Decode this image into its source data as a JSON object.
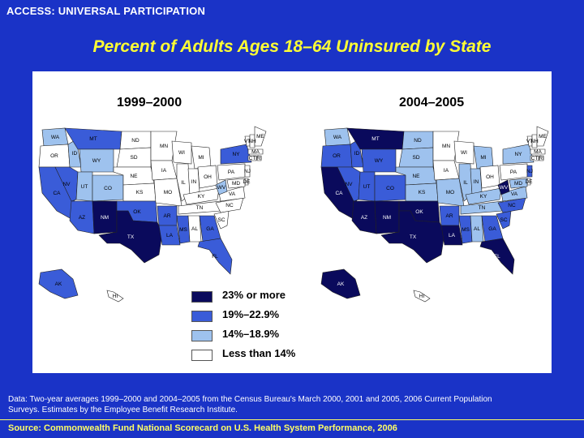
{
  "header": "ACCESS: UNIVERSAL PARTICIPATION",
  "title": "Percent of Adults Ages 18–64 Uninsured by State",
  "colors": {
    "background": "#1a33c7",
    "title": "#ffff33",
    "cat_23_plus": "#0a0a5c",
    "cat_19_22": "#3a5cd8",
    "cat_14_18": "#9ec2ee",
    "cat_lt14": "#ffffff"
  },
  "maps": [
    {
      "period": "1999–2000",
      "state_labels": [
        "WA",
        "MT",
        "ND",
        "OR",
        "ID",
        "SD",
        "MN",
        "WY",
        "WI",
        "MI",
        "NY",
        "VT",
        "NH",
        "ME",
        "MA",
        "RI",
        "CT",
        "NJ",
        "PA",
        "IA",
        "NE",
        "NV",
        "UT",
        "CO",
        "IL",
        "IN",
        "OH",
        "WV",
        "VA",
        "DE",
        "MD",
        "DC",
        "CA",
        "KS",
        "MO",
        "KY",
        "NC",
        "TN",
        "AZ",
        "NM",
        "OK",
        "AR",
        "SC",
        "MS",
        "AL",
        "GA",
        "TX",
        "LA",
        "FL",
        "AK",
        "HI"
      ]
    },
    {
      "period": "2004–2005",
      "state_labels": [
        "WA",
        "MT",
        "ND",
        "OR",
        "ID",
        "SD",
        "MN",
        "WY",
        "WI",
        "MI",
        "NY",
        "VT",
        "NH",
        "ME",
        "MA",
        "RI",
        "CT",
        "NJ",
        "PA",
        "IA",
        "NE",
        "NV",
        "UT",
        "CO",
        "IL",
        "IN",
        "OH",
        "WV",
        "VA",
        "DE",
        "MD",
        "DC",
        "CA",
        "KS",
        "MO",
        "KY",
        "NC",
        "TN",
        "AZ",
        "NM",
        "OK",
        "AR",
        "SC",
        "MS",
        "AL",
        "GA",
        "TX",
        "LA",
        "FL",
        "AK",
        "HI"
      ]
    }
  ],
  "legend": [
    {
      "label": "23% or more",
      "color": "#0a0a5c"
    },
    {
      "label": "19%–22.9%",
      "color": "#3a5cd8"
    },
    {
      "label": "14%–18.9%",
      "color": "#9ec2ee"
    },
    {
      "label": "Less than 14%",
      "color": "#ffffff"
    }
  ],
  "footnote": "Data: Two-year averages 1999–2000 and 2004–2005 from the Census Bureau's March 2000, 2001 and 2005, 2006 Current Population Surveys. Estimates by the Employee Benefit Research Institute.",
  "source": "Source: Commonwealth Fund National Scorecard on U.S. Health System Performance, 2006"
}
